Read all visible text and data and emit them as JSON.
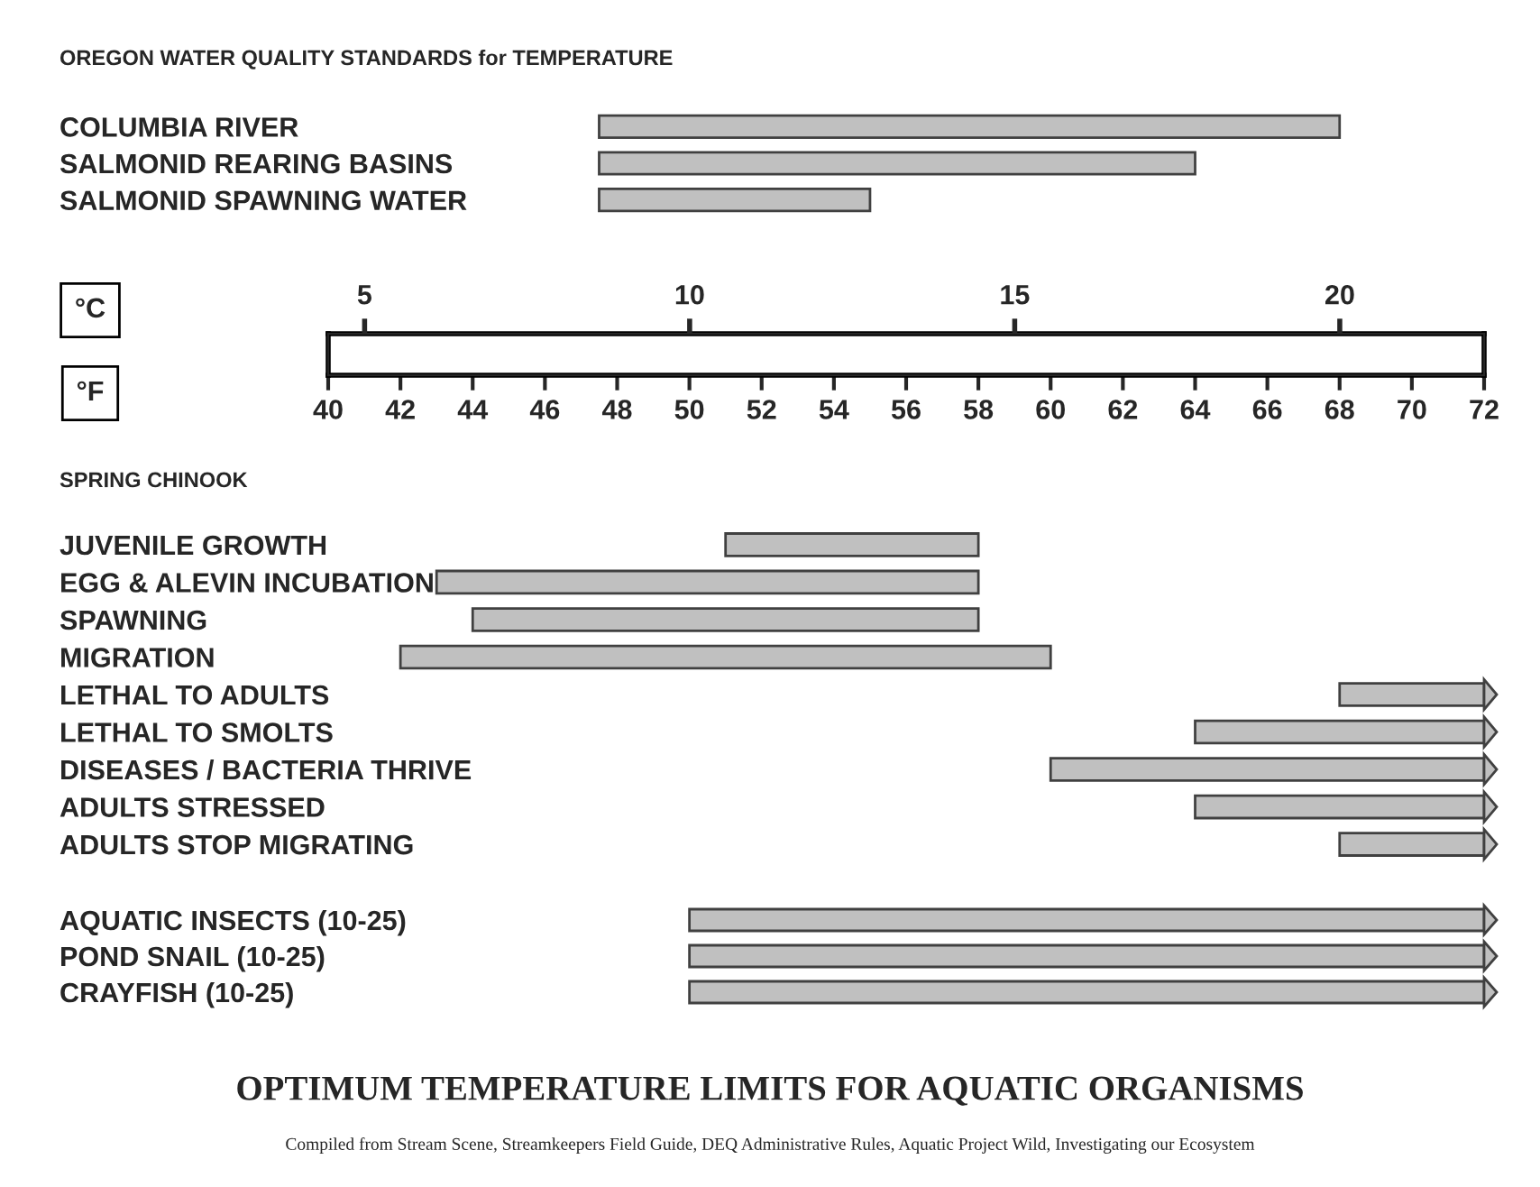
{
  "chart_data": [
    {
      "type": "bar",
      "orientation": "horizontal",
      "title": "OREGON WATER QUALITY STANDARDS for TEMPERATURE",
      "categories": [
        "COLUMBIA RIVER",
        "SALMONID REARING BASINS",
        "SALMONID SPAWNING WATER"
      ],
      "base": [
        47.5,
        47.5,
        47.5
      ],
      "values": [
        20.5,
        16.5,
        7.5
      ],
      "color": "#c0c0c0",
      "xlim": [
        40,
        72
      ],
      "tick_labels": "y"
    },
    {
      "type": "bar",
      "orientation": "horizontal",
      "title": "SPRING CHINOOK",
      "xlabel": "°F",
      "x2label": "°C",
      "categories": [
        "JUVENILE GROWTH",
        "EGG & ALEVIN INCUBATION",
        "SPAWNING",
        "MIGRATION",
        "LETHAL TO ADULTS",
        "LETHAL TO SMOLTS",
        "DISEASES / BACTERIA THRIVE",
        "ADULTS STRESSED",
        "ADULTS STOP MIGRATING"
      ],
      "base": [
        51,
        43,
        44,
        42,
        68,
        64,
        60,
        64,
        68
      ],
      "values": [
        7,
        15,
        14,
        18,
        4,
        8,
        12,
        8,
        4
      ],
      "color": "#c0c0c0",
      "xlim": [
        40,
        72
      ],
      "xticks": [
        40,
        42,
        44,
        46,
        48,
        50,
        52,
        54,
        56,
        58,
        60,
        62,
        64,
        66,
        68,
        70,
        72
      ],
      "x2lim": [
        4.44,
        22.22
      ],
      "x2ticks": [
        5,
        10,
        15,
        20
      ]
    },
    {
      "type": "bar",
      "orientation": "horizontal",
      "title": "OPTIMUM TEMPERATURE LIMITS FOR AQUATIC ORGANISMS",
      "categories": [
        "AQUATIC INSECTS (10-25)",
        "POND SNAIL (10-25)",
        "CRAYFISH (10-25)"
      ],
      "base": [
        50,
        50,
        50
      ],
      "values": [
        22,
        22,
        22
      ],
      "color": "#c0c0c0",
      "xlim": [
        40,
        72
      ],
      "tick_labels": "y",
      "annotations": [
        "Compiled from Stream Scene, Streamkeepers Field Guide, DEQ Administrative Rules, Aquatic Project Wild, Investigating our Ecosystem"
      ]
    }
  ]
}
